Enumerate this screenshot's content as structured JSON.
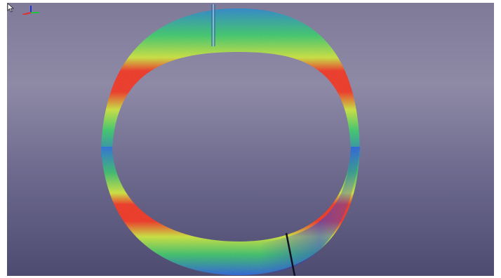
{
  "viewer": {
    "background_top": "#8e8aa6",
    "background_bottom": "#4e4b70",
    "colormap": [
      "#1f3fe0",
      "#2f8fd0",
      "#3fd070",
      "#d7e83a",
      "#f0301f"
    ],
    "object": "ring-scan-heatmap",
    "icons": [
      "cursor-arrow-icon",
      "axis-triad-icon"
    ]
  }
}
